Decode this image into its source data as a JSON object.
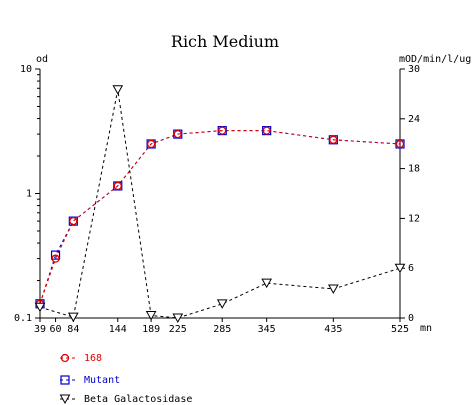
{
  "chart_data": {
    "type": "line",
    "title": "Rich Medium",
    "y_left_label": "od",
    "y_right_label": "mOD/min/l/ug",
    "x_unit_label": "mn",
    "x": [
      39,
      60,
      84,
      144,
      189,
      225,
      285,
      345,
      435,
      525
    ],
    "x_tick_labels": [
      "39",
      "60",
      "84",
      "144",
      "189",
      "225",
      "285",
      "345",
      "435",
      "525"
    ],
    "y_left_scale": "log",
    "y_left_range": [
      0.1,
      10
    ],
    "y_left_ticks": [
      "0.1",
      "1",
      "10"
    ],
    "y_right_range": [
      0,
      30
    ],
    "y_right_ticks": [
      "0",
      "6",
      "12",
      "18",
      "24",
      "30"
    ],
    "grid": false,
    "legend_position": "bottom-left",
    "series": [
      {
        "name": "168",
        "axis": "left",
        "color": "#e00000",
        "marker": "circle",
        "x": [
          39,
          60,
          84,
          144,
          189,
          225,
          285,
          345,
          435,
          525
        ],
        "y": [
          0.13,
          0.3,
          0.6,
          1.15,
          2.5,
          3.0,
          3.2,
          3.2,
          2.7,
          2.5
        ]
      },
      {
        "name": "Mutant",
        "axis": "left",
        "color": "#0000cc",
        "marker": "square",
        "x": [
          39,
          60,
          84,
          144,
          189,
          225,
          285,
          345,
          435,
          525
        ],
        "y": [
          0.13,
          0.32,
          0.6,
          1.15,
          2.5,
          3.0,
          3.2,
          3.2,
          2.7,
          2.5
        ]
      },
      {
        "name": "Beta Galactosidase",
        "axis": "right",
        "color": "#000000",
        "marker": "triangle-down",
        "x": [
          39,
          84,
          144,
          189,
          225,
          285,
          345,
          435,
          525
        ],
        "y": [
          1.3,
          0.1,
          27.5,
          0.3,
          0.0,
          1.7,
          4.2,
          3.5,
          6.0
        ]
      }
    ]
  }
}
